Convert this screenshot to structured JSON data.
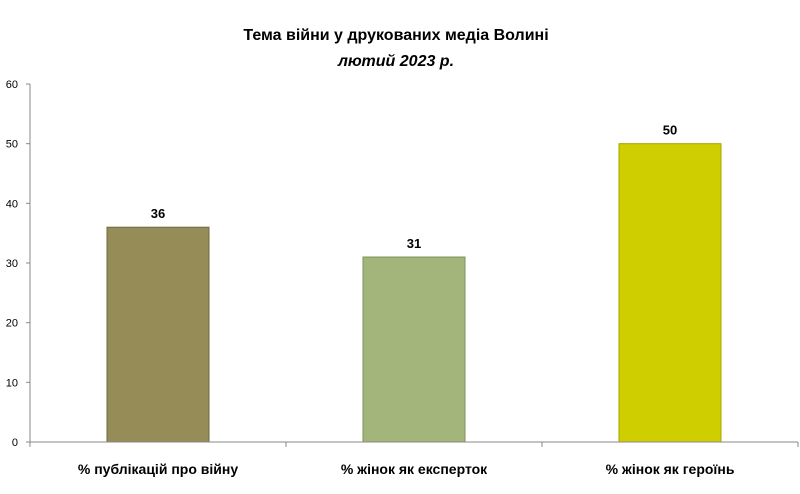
{
  "chart_data": {
    "type": "bar",
    "title": "Тема війни у друкованих медіа Волині",
    "subtitle": "лютий 2023 р.",
    "categories": [
      "% публікацій про війну",
      "% жінок як експерток",
      "% жінок як героїнь"
    ],
    "values": [
      36,
      31,
      50
    ],
    "data_labels": [
      "36",
      "31",
      "50"
    ],
    "ylim": [
      0,
      60
    ],
    "yticks": [
      "0",
      "10",
      "20",
      "30",
      "40",
      "50",
      "60"
    ],
    "grid": false,
    "legend": "none",
    "colors": [
      "#958C58",
      "#A3B57B",
      "#CECE00"
    ],
    "border_colors": [
      "#6F6A3D",
      "#7E9158",
      "#A6A600"
    ]
  }
}
